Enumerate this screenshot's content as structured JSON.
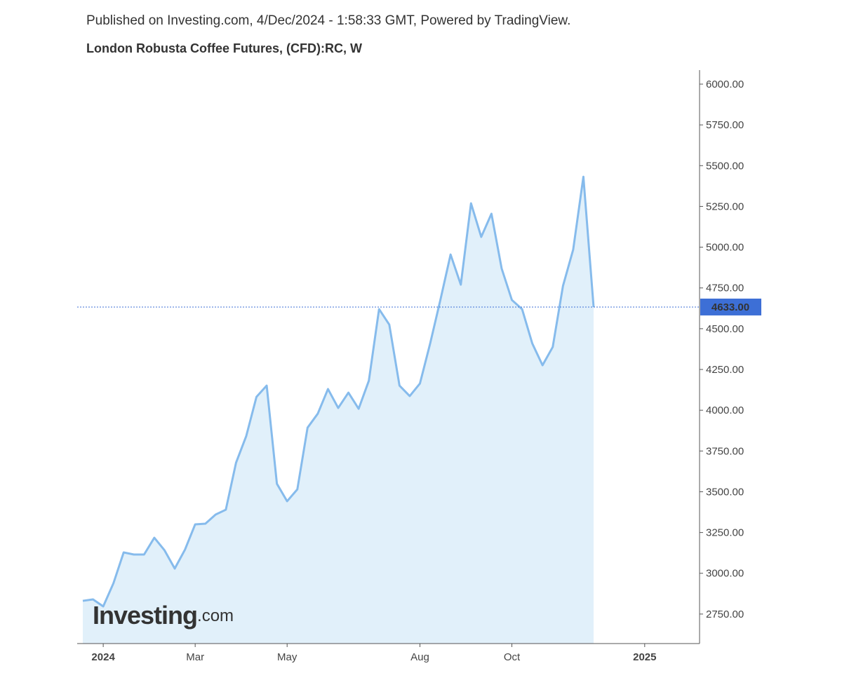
{
  "chart_data": {
    "type": "area",
    "subtitle": "Published on Investing.com, 4/Dec/2024 - 1:58:33 GMT, Powered by TradingView.",
    "title": "London Robusta Coffee Futures, (CFD):RC, W",
    "watermark": "Investing",
    "watermark_suffix": ".com",
    "categories": [
      null,
      null,
      "2024",
      null,
      null,
      null,
      null,
      null,
      null,
      null,
      null,
      "Mar",
      null,
      null,
      null,
      null,
      null,
      null,
      null,
      null,
      "May",
      null,
      null,
      null,
      null,
      null,
      null,
      null,
      null,
      null,
      null,
      null,
      null,
      "Aug",
      null,
      null,
      null,
      null,
      null,
      null,
      null,
      null,
      "Oct",
      null,
      null,
      null,
      null,
      null,
      null,
      null,
      null,
      null,
      null,
      null,
      null,
      "2025"
    ],
    "values": [
      2831,
      2840,
      2797,
      2939,
      3128,
      3115,
      3115,
      3218,
      3141,
      3029,
      3145,
      3300,
      3304,
      3360,
      3390,
      3678,
      3842,
      4082,
      4151,
      3549,
      3442,
      3515,
      3893,
      3979,
      4130,
      4014,
      4108,
      4009,
      4181,
      4620,
      4525,
      4151,
      4087,
      4164,
      4409,
      4676,
      4955,
      4770,
      5269,
      5063,
      5205,
      4869,
      4676,
      4620,
      4409,
      4276,
      4388,
      4762,
      4985,
      5432,
      4633,
      null,
      null,
      null,
      null,
      null
    ],
    "value_labels": [
      null,
      null,
      null,
      null,
      null,
      null,
      null,
      null,
      null,
      null,
      null,
      null,
      null,
      null,
      null,
      null,
      null,
      null,
      null,
      null,
      null,
      null,
      null,
      null,
      null,
      null,
      null,
      null,
      null,
      null,
      null,
      null,
      null,
      null,
      null,
      null,
      null,
      null,
      null,
      null,
      null,
      null,
      null,
      null,
      null,
      null,
      null,
      null,
      null,
      null,
      "4633.00",
      null,
      null,
      null,
      null,
      null
    ],
    "color": "#86bbec",
    "fill_color": "#e1f0fa",
    "ylim": [
      2569,
      6086
    ],
    "yticks": [
      {
        "value": 2750,
        "label": "2750.00"
      },
      {
        "value": 3000,
        "label": "3000.00"
      },
      {
        "value": 3250,
        "label": "3250.00"
      },
      {
        "value": 3500,
        "label": "3500.00"
      },
      {
        "value": 3750,
        "label": "3750.00"
      },
      {
        "value": 4000,
        "label": "4000.00"
      },
      {
        "value": 4250,
        "label": "4250.00"
      },
      {
        "value": 4500,
        "label": "4500.00"
      },
      {
        "value": 4750,
        "label": "4750.00"
      },
      {
        "value": 5000,
        "label": "5000.00"
      },
      {
        "value": 5250,
        "label": "5250.00"
      },
      {
        "value": 5500,
        "label": "5500.00"
      },
      {
        "value": 5750,
        "label": "5750.00"
      },
      {
        "value": 6000,
        "label": "6000.00"
      }
    ],
    "grid": false
  }
}
